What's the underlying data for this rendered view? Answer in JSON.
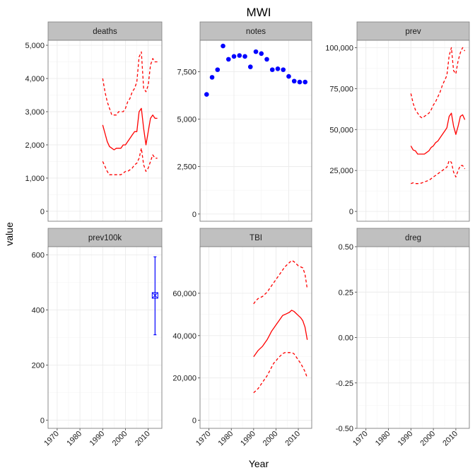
{
  "chart_data": {
    "type": "line",
    "title": "MWI",
    "xlabel": "Year",
    "ylabel": "value",
    "grid": true,
    "legend": "none",
    "x_ticks": [
      1970,
      1980,
      1990,
      2000,
      2010
    ],
    "colors": {
      "estimate": "#ff0000",
      "notes": "#0000ff",
      "strip": "#c0c0c0",
      "panel_border": "#7f7f7f",
      "grid": "#ebebeb"
    },
    "panels": [
      {
        "name": "deaths",
        "type": "line",
        "xlim": [
          1966,
          2016
        ],
        "ylim": [
          -300,
          5150
        ],
        "y_ticks": [
          0,
          1000,
          2000,
          3000,
          4000,
          5000
        ],
        "y_tick_labels": [
          "0",
          "1,000",
          "2,000",
          "3,000",
          "4,000",
          "5,000"
        ],
        "series": [
          {
            "style": "solid",
            "x": [
              1990,
              1991,
              1992,
              1993,
              1994,
              1995,
              1996,
              1997,
              1998,
              1999,
              2000,
              2001,
              2002,
              2003,
              2004,
              2005,
              2006,
              2007,
              2008,
              2009,
              2010,
              2011,
              2012,
              2013,
              2014
            ],
            "y": [
              2600,
              2350,
              2100,
              1950,
              1900,
              1850,
              1900,
              1900,
              1900,
              2000,
              2000,
              2100,
              2200,
              2300,
              2400,
              2400,
              3000,
              3100,
              2500,
              2000,
              2400,
              2800,
              2900,
              2800,
              2800
            ]
          },
          {
            "style": "dashed",
            "x": [
              1990,
              1991,
              1992,
              1993,
              1994,
              1995,
              1996,
              1997,
              1998,
              1999,
              2000,
              2001,
              2002,
              2003,
              2004,
              2005,
              2006,
              2007,
              2008,
              2009,
              2010,
              2011,
              2012,
              2013,
              2014
            ],
            "y": [
              4000,
              3600,
              3300,
              3100,
              2900,
              2900,
              2900,
              3000,
              3000,
              3000,
              3100,
              3300,
              3400,
              3600,
              3700,
              3900,
              4650,
              4800,
              3700,
              3600,
              3800,
              4400,
              4600,
              4500,
              4500
            ]
          },
          {
            "style": "dashed",
            "x": [
              1990,
              1991,
              1992,
              1993,
              1994,
              1995,
              1996,
              1997,
              1998,
              1999,
              2000,
              2001,
              2002,
              2003,
              2004,
              2005,
              2006,
              2007,
              2008,
              2009,
              2010,
              2011,
              2012,
              2013,
              2014
            ],
            "y": [
              1500,
              1350,
              1200,
              1100,
              1100,
              1100,
              1100,
              1100,
              1100,
              1150,
              1200,
              1200,
              1250,
              1300,
              1400,
              1450,
              1600,
              1900,
              1400,
              1200,
              1300,
              1500,
              1700,
              1600,
              1600
            ]
          }
        ]
      },
      {
        "name": "notes",
        "type": "scatter",
        "xlim": [
          1993.8,
          2014.2
        ],
        "ylim": [
          -380,
          9150
        ],
        "y_ticks": [
          0,
          2500,
          5000,
          7500
        ],
        "y_tick_labels": [
          "0",
          "2,500",
          "5,000",
          "7,500"
        ],
        "points": {
          "x": [
            1995,
            1996,
            1997,
            1998,
            1999,
            2000,
            2001,
            2002,
            2003,
            2004,
            2005,
            2006,
            2007,
            2008,
            2009,
            2010,
            2011,
            2012,
            2013
          ],
          "y": [
            6300,
            7200,
            7600,
            8850,
            8150,
            8300,
            8350,
            8300,
            7750,
            8550,
            8450,
            8150,
            7600,
            7650,
            7600,
            7250,
            7000,
            6950,
            6950
          ]
        }
      },
      {
        "name": "prev",
        "type": "line",
        "xlim": [
          1966,
          2016
        ],
        "ylim": [
          -6000,
          104500
        ],
        "y_ticks": [
          0,
          25000,
          50000,
          75000,
          100000
        ],
        "y_tick_labels": [
          "0",
          "25,000",
          "50,000",
          "75,000",
          "100,000"
        ],
        "series": [
          {
            "style": "solid",
            "x": [
              1990,
              1991,
              1992,
              1993,
              1994,
              1995,
              1996,
              1997,
              1998,
              1999,
              2000,
              2001,
              2002,
              2003,
              2004,
              2005,
              2006,
              2007,
              2008,
              2009,
              2010,
              2011,
              2012,
              2013,
              2014
            ],
            "y": [
              40000,
              37500,
              37000,
              35000,
              35000,
              35000,
              35000,
              36000,
              37000,
              39000,
              40000,
              42000,
              43000,
              45000,
              47000,
              49000,
              51000,
              58000,
              60000,
              52000,
              47000,
              52000,
              58000,
              59000,
              56000
            ]
          },
          {
            "style": "dashed",
            "x": [
              1990,
              1991,
              1992,
              1993,
              1994,
              1995,
              1996,
              1997,
              1998,
              1999,
              2000,
              2001,
              2002,
              2003,
              2004,
              2005,
              2006,
              2007,
              2008,
              2009,
              2010,
              2011,
              2012,
              2013,
              2014
            ],
            "y": [
              72000,
              66000,
              62000,
              60000,
              58000,
              57000,
              58000,
              59000,
              60000,
              62000,
              65000,
              67000,
              70000,
              73000,
              77000,
              80000,
              83000,
              95000,
              100000,
              86000,
              84000,
              92000,
              97000,
              100000,
              98000
            ]
          },
          {
            "style": "dashed",
            "x": [
              1990,
              1991,
              1992,
              1993,
              1994,
              1995,
              1996,
              1997,
              1998,
              1999,
              2000,
              2001,
              2002,
              2003,
              2004,
              2005,
              2006,
              2007,
              2008,
              2009,
              2010,
              2011,
              2012,
              2013,
              2014
            ],
            "y": [
              17000,
              17500,
              17000,
              17000,
              17000,
              17500,
              18000,
              18500,
              19000,
              20000,
              21000,
              22000,
              23000,
              24000,
              25000,
              26000,
              27000,
              31000,
              30000,
              24000,
              21000,
              25000,
              28000,
              28000,
              26000
            ]
          }
        ]
      },
      {
        "name": "prev100k",
        "type": "errorbar",
        "xlim": [
          1966,
          2016
        ],
        "ylim": [
          -30,
          630
        ],
        "y_ticks": [
          0,
          200,
          400,
          600
        ],
        "y_tick_labels": [
          "0",
          "200",
          "400",
          "600"
        ],
        "point": {
          "x": 2013,
          "y": 453,
          "ymin": 310,
          "ymax": 593
        }
      },
      {
        "name": "TBI",
        "type": "line",
        "xlim": [
          1966,
          2016
        ],
        "ylim": [
          -3800,
          82000
        ],
        "y_ticks": [
          0,
          20000,
          40000,
          60000
        ],
        "y_tick_labels": [
          "0",
          "20,000",
          "40,000",
          "60,000"
        ],
        "series": [
          {
            "style": "solid",
            "x": [
              1990,
              1991,
              1992,
              1993,
              1994,
              1995,
              1996,
              1997,
              1998,
              1999,
              2000,
              2001,
              2002,
              2003,
              2004,
              2005,
              2006,
              2007,
              2008,
              2009,
              2010,
              2011,
              2012,
              2013,
              2014
            ],
            "y": [
              30000,
              31500,
              33000,
              34000,
              35000,
              36500,
              38000,
              40000,
              42000,
              43500,
              45000,
              46500,
              48000,
              49500,
              50000,
              50500,
              51000,
              52000,
              51500,
              50500,
              49500,
              48500,
              47000,
              44000,
              38000
            ]
          },
          {
            "style": "dashed",
            "x": [
              1990,
              1991,
              1992,
              1993,
              1994,
              1995,
              1996,
              1997,
              1998,
              1999,
              2000,
              2001,
              2002,
              2003,
              2004,
              2005,
              2006,
              2007,
              2008,
              2009,
              2010,
              2011,
              2012,
              2013,
              2014
            ],
            "y": [
              55000,
              56500,
              57500,
              58000,
              58500,
              59500,
              60500,
              62000,
              63500,
              65000,
              66500,
              68000,
              69500,
              71000,
              72500,
              73500,
              74500,
              75500,
              75000,
              74000,
              73000,
              72500,
              72000,
              69000,
              62000
            ]
          },
          {
            "style": "dashed",
            "x": [
              1990,
              1991,
              1992,
              1993,
              1994,
              1995,
              1996,
              1997,
              1998,
              1999,
              2000,
              2001,
              2002,
              2003,
              2004,
              2005,
              2006,
              2007,
              2008,
              2009,
              2010,
              2011,
              2012,
              2013,
              2014
            ],
            "y": [
              13000,
              14000,
              15000,
              16500,
              18000,
              19500,
              21000,
              23000,
              25000,
              27000,
              28000,
              29500,
              30500,
              31500,
              32000,
              32000,
              32000,
              32000,
              31500,
              30000,
              28500,
              27000,
              25000,
              23000,
              20000
            ]
          }
        ]
      },
      {
        "name": "dreg",
        "type": "empty",
        "xlim": [
          1966,
          2016
        ],
        "ylim": [
          -0.5,
          0.5
        ],
        "y_ticks": [
          -0.5,
          -0.25,
          0,
          0.25,
          0.5
        ],
        "y_tick_labels": [
          "-0.50",
          "-0.25",
          "0.00",
          "0.25",
          "0.50"
        ]
      }
    ]
  }
}
